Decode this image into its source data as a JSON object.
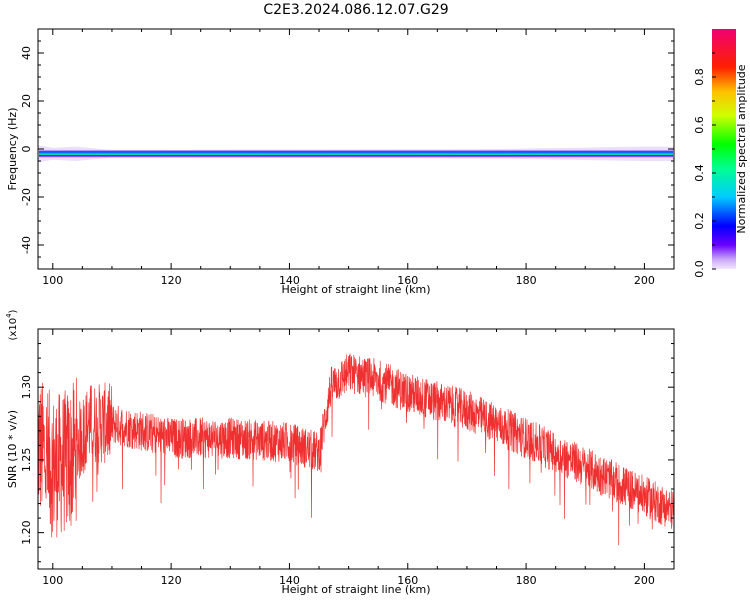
{
  "title": "C2E3.2024.086.12.07.G29",
  "colors": {
    "snr_line": "#f03030",
    "axis": "#000000",
    "background": "#ffffff"
  },
  "chart_data": [
    {
      "type": "heatmap",
      "xlabel": "Height of straight line (km)",
      "ylabel": "Frequency (Hz)",
      "xlim": [
        97.5,
        205
      ],
      "ylim": [
        -50,
        50
      ],
      "x_ticks": [
        100,
        120,
        140,
        160,
        180,
        200
      ],
      "y_ticks": [
        -40,
        -20,
        0,
        20,
        40
      ],
      "colorbar": {
        "label": "Normalized spectral amplitude",
        "ticks": [
          "0.0",
          "0.2",
          "0.4",
          "0.6",
          "0.8"
        ],
        "range": [
          0,
          1
        ]
      },
      "band": {
        "center_hz": -2,
        "profile": [
          {
            "x": 97.5,
            "halfwidth_hz": 3.5
          },
          {
            "x": 100,
            "halfwidth_hz": 2.5
          },
          {
            "x": 104,
            "halfwidth_hz": 3.0
          },
          {
            "x": 110,
            "halfwidth_hz": 1.5
          },
          {
            "x": 150,
            "halfwidth_hz": 1.8
          },
          {
            "x": 175,
            "halfwidth_hz": 2.0
          },
          {
            "x": 200,
            "halfwidth_hz": 3.0
          },
          {
            "x": 205,
            "halfwidth_hz": 3.0
          }
        ]
      }
    },
    {
      "type": "line",
      "xlabel": "Height of straight line (km)",
      "ylabel": "SNR (10 * v/v)",
      "multiplier": "(x10^4)",
      "xlim": [
        97.5,
        205
      ],
      "ylim": [
        1.175,
        1.34
      ],
      "x_ticks": [
        100,
        120,
        140,
        160,
        180,
        200
      ],
      "y_ticks": [
        "1.20",
        "1.25",
        "1.30"
      ],
      "series": [
        {
          "color": "#f03030",
          "trend": [
            {
              "x": 97.5,
              "y": 1.26
            },
            {
              "x": 100,
              "y": 1.245
            },
            {
              "x": 103,
              "y": 1.25
            },
            {
              "x": 106,
              "y": 1.275
            },
            {
              "x": 110,
              "y": 1.275
            },
            {
              "x": 120,
              "y": 1.265
            },
            {
              "x": 130,
              "y": 1.265
            },
            {
              "x": 140,
              "y": 1.262
            },
            {
              "x": 145,
              "y": 1.255
            },
            {
              "x": 147,
              "y": 1.3
            },
            {
              "x": 150,
              "y": 1.31
            },
            {
              "x": 155,
              "y": 1.305
            },
            {
              "x": 160,
              "y": 1.296
            },
            {
              "x": 170,
              "y": 1.284
            },
            {
              "x": 180,
              "y": 1.265
            },
            {
              "x": 190,
              "y": 1.245
            },
            {
              "x": 200,
              "y": 1.225
            },
            {
              "x": 205,
              "y": 1.215
            }
          ]
        }
      ]
    }
  ]
}
